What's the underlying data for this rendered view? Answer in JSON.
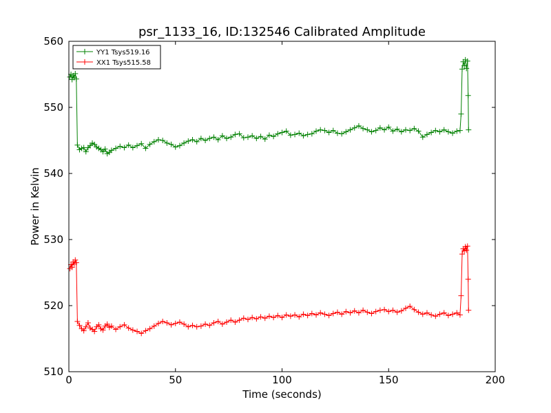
{
  "chart_data": {
    "type": "line",
    "title": "psr_1133_16, ID:132546 Calibrated Amplitude",
    "xlabel": "Time (seconds)",
    "ylabel": "Power in Kelvin",
    "xlim": [
      0,
      200
    ],
    "ylim": [
      510,
      560
    ],
    "xticks": [
      "0",
      "50",
      "100",
      "150",
      "200"
    ],
    "yticks": [
      "510",
      "520",
      "530",
      "540",
      "550",
      "560"
    ],
    "grid": false,
    "legend_position": "top-left",
    "marker": "plus",
    "series": [
      {
        "name": "YY1 Tsys519.16",
        "color": "#008000",
        "points": [
          [
            0.5,
            554.6
          ],
          [
            1.0,
            555.0
          ],
          [
            1.5,
            554.2
          ],
          [
            2.0,
            554.8
          ],
          [
            2.5,
            554.5
          ],
          [
            3.0,
            555.1
          ],
          [
            3.5,
            554.3
          ],
          [
            4.0,
            544.3
          ],
          [
            5.0,
            543.6
          ],
          [
            6.0,
            543.8
          ],
          [
            7.0,
            543.9
          ],
          [
            8.0,
            543.3
          ],
          [
            9.0,
            543.9
          ],
          [
            10.0,
            544.2
          ],
          [
            11.0,
            544.6
          ],
          [
            12.0,
            544.4
          ],
          [
            13.0,
            544.0
          ],
          [
            14.0,
            543.8
          ],
          [
            15.0,
            543.6
          ],
          [
            16.0,
            543.3
          ],
          [
            17.0,
            543.7
          ],
          [
            18.0,
            543.0
          ],
          [
            19.0,
            543.2
          ],
          [
            20.0,
            543.5
          ],
          [
            22.0,
            543.8
          ],
          [
            24.0,
            544.1
          ],
          [
            26.0,
            543.9
          ],
          [
            28.0,
            544.3
          ],
          [
            30.0,
            543.9
          ],
          [
            32.0,
            544.2
          ],
          [
            34.0,
            544.5
          ],
          [
            36.0,
            543.8
          ],
          [
            38.0,
            544.4
          ],
          [
            40.0,
            544.8
          ],
          [
            42.0,
            545.1
          ],
          [
            44.0,
            545.0
          ],
          [
            46.0,
            544.6
          ],
          [
            48.0,
            544.4
          ],
          [
            50.0,
            544.0
          ],
          [
            52.0,
            544.2
          ],
          [
            54.0,
            544.6
          ],
          [
            56.0,
            544.9
          ],
          [
            58.0,
            545.1
          ],
          [
            60.0,
            544.8
          ],
          [
            62.0,
            545.3
          ],
          [
            64.0,
            545.0
          ],
          [
            66.0,
            545.3
          ],
          [
            68.0,
            545.5
          ],
          [
            70.0,
            545.1
          ],
          [
            72.0,
            545.7
          ],
          [
            74.0,
            545.3
          ],
          [
            76.0,
            545.5
          ],
          [
            78.0,
            545.9
          ],
          [
            80.0,
            546.0
          ],
          [
            82.0,
            545.4
          ],
          [
            84.0,
            545.5
          ],
          [
            86.0,
            545.7
          ],
          [
            88.0,
            545.3
          ],
          [
            90.0,
            545.6
          ],
          [
            92.0,
            545.2
          ],
          [
            94.0,
            545.8
          ],
          [
            96.0,
            545.6
          ],
          [
            98.0,
            546.0
          ],
          [
            100.0,
            546.2
          ],
          [
            102.0,
            546.4
          ],
          [
            104.0,
            545.8
          ],
          [
            106.0,
            545.9
          ],
          [
            108.0,
            546.1
          ],
          [
            110.0,
            545.7
          ],
          [
            112.0,
            545.9
          ],
          [
            114.0,
            546.0
          ],
          [
            116.0,
            546.4
          ],
          [
            118.0,
            546.6
          ],
          [
            120.0,
            546.5
          ],
          [
            122.0,
            546.2
          ],
          [
            124.0,
            546.5
          ],
          [
            126.0,
            546.1
          ],
          [
            128.0,
            546.0
          ],
          [
            130.0,
            546.3
          ],
          [
            132.0,
            546.6
          ],
          [
            134.0,
            546.9
          ],
          [
            136.0,
            547.2
          ],
          [
            138.0,
            546.8
          ],
          [
            140.0,
            546.6
          ],
          [
            142.0,
            546.3
          ],
          [
            144.0,
            546.5
          ],
          [
            146.0,
            546.9
          ],
          [
            148.0,
            546.6
          ],
          [
            150.0,
            547.0
          ],
          [
            152.0,
            546.4
          ],
          [
            154.0,
            546.7
          ],
          [
            156.0,
            546.3
          ],
          [
            158.0,
            546.6
          ],
          [
            160.0,
            546.5
          ],
          [
            162.0,
            546.8
          ],
          [
            164.0,
            546.4
          ],
          [
            166.0,
            545.5
          ],
          [
            168.0,
            545.9
          ],
          [
            170.0,
            546.2
          ],
          [
            172.0,
            546.5
          ],
          [
            174.0,
            546.3
          ],
          [
            176.0,
            546.6
          ],
          [
            178.0,
            546.3
          ],
          [
            180.0,
            546.1
          ],
          [
            182.0,
            546.4
          ],
          [
            183.5,
            546.5
          ],
          [
            184.0,
            549.0
          ],
          [
            184.5,
            555.8
          ],
          [
            185.0,
            556.9
          ],
          [
            185.5,
            556.3
          ],
          [
            186.0,
            557.2
          ],
          [
            186.5,
            555.9
          ],
          [
            187.0,
            557.0
          ],
          [
            187.3,
            551.8
          ],
          [
            187.5,
            546.6
          ]
        ]
      },
      {
        "name": "XX1 Tsys515.58",
        "color": "#ff0000",
        "points": [
          [
            0.5,
            525.6
          ],
          [
            1.0,
            526.2
          ],
          [
            1.5,
            525.8
          ],
          [
            2.0,
            526.6
          ],
          [
            2.5,
            526.3
          ],
          [
            3.0,
            526.9
          ],
          [
            3.5,
            526.5
          ],
          [
            4.0,
            517.6
          ],
          [
            5.0,
            517.0
          ],
          [
            6.0,
            516.5
          ],
          [
            7.0,
            516.2
          ],
          [
            8.0,
            516.8
          ],
          [
            9.0,
            517.4
          ],
          [
            10.0,
            516.6
          ],
          [
            11.0,
            516.4
          ],
          [
            12.0,
            516.1
          ],
          [
            13.0,
            516.8
          ],
          [
            14.0,
            517.1
          ],
          [
            15.0,
            516.5
          ],
          [
            16.0,
            516.3
          ],
          [
            17.0,
            516.9
          ],
          [
            18.0,
            517.2
          ],
          [
            19.0,
            516.7
          ],
          [
            20.0,
            516.9
          ],
          [
            22.0,
            516.4
          ],
          [
            24.0,
            516.8
          ],
          [
            26.0,
            517.1
          ],
          [
            28.0,
            516.6
          ],
          [
            30.0,
            516.3
          ],
          [
            32.0,
            516.1
          ],
          [
            34.0,
            515.8
          ],
          [
            36.0,
            516.2
          ],
          [
            38.0,
            516.5
          ],
          [
            40.0,
            516.9
          ],
          [
            42.0,
            517.3
          ],
          [
            44.0,
            517.6
          ],
          [
            46.0,
            517.4
          ],
          [
            48.0,
            517.1
          ],
          [
            50.0,
            517.3
          ],
          [
            52.0,
            517.5
          ],
          [
            54.0,
            517.2
          ],
          [
            56.0,
            516.8
          ],
          [
            58.0,
            517.0
          ],
          [
            60.0,
            516.8
          ],
          [
            62.0,
            516.9
          ],
          [
            64.0,
            517.2
          ],
          [
            66.0,
            517.0
          ],
          [
            68.0,
            517.4
          ],
          [
            70.0,
            517.6
          ],
          [
            72.0,
            517.2
          ],
          [
            74.0,
            517.5
          ],
          [
            76.0,
            517.8
          ],
          [
            78.0,
            517.5
          ],
          [
            80.0,
            517.8
          ],
          [
            82.0,
            518.1
          ],
          [
            84.0,
            517.9
          ],
          [
            86.0,
            518.2
          ],
          [
            88.0,
            518.0
          ],
          [
            90.0,
            518.3
          ],
          [
            92.0,
            518.1
          ],
          [
            94.0,
            518.4
          ],
          [
            96.0,
            518.2
          ],
          [
            98.0,
            518.5
          ],
          [
            100.0,
            518.2
          ],
          [
            102.0,
            518.6
          ],
          [
            104.0,
            518.4
          ],
          [
            106.0,
            518.6
          ],
          [
            108.0,
            518.3
          ],
          [
            110.0,
            518.7
          ],
          [
            112.0,
            518.5
          ],
          [
            114.0,
            518.8
          ],
          [
            116.0,
            518.6
          ],
          [
            118.0,
            518.9
          ],
          [
            120.0,
            518.7
          ],
          [
            122.0,
            518.5
          ],
          [
            124.0,
            518.8
          ],
          [
            126.0,
            519.0
          ],
          [
            128.0,
            518.7
          ],
          [
            130.0,
            519.1
          ],
          [
            132.0,
            518.9
          ],
          [
            134.0,
            519.2
          ],
          [
            136.0,
            518.9
          ],
          [
            138.0,
            519.3
          ],
          [
            140.0,
            519.0
          ],
          [
            142.0,
            518.8
          ],
          [
            144.0,
            519.1
          ],
          [
            146.0,
            519.3
          ],
          [
            148.0,
            519.4
          ],
          [
            150.0,
            519.1
          ],
          [
            152.0,
            519.3
          ],
          [
            154.0,
            519.0
          ],
          [
            156.0,
            519.2
          ],
          [
            158.0,
            519.6
          ],
          [
            160.0,
            519.9
          ],
          [
            162.0,
            519.4
          ],
          [
            164.0,
            519.0
          ],
          [
            166.0,
            518.7
          ],
          [
            168.0,
            518.9
          ],
          [
            170.0,
            518.6
          ],
          [
            172.0,
            518.4
          ],
          [
            174.0,
            518.7
          ],
          [
            176.0,
            518.9
          ],
          [
            178.0,
            518.5
          ],
          [
            180.0,
            518.7
          ],
          [
            182.0,
            518.9
          ],
          [
            183.5,
            518.6
          ],
          [
            184.0,
            521.5
          ],
          [
            184.5,
            527.8
          ],
          [
            185.0,
            528.6
          ],
          [
            185.5,
            528.3
          ],
          [
            186.0,
            528.9
          ],
          [
            186.5,
            528.4
          ],
          [
            187.0,
            529.0
          ],
          [
            187.3,
            524.0
          ],
          [
            187.5,
            519.3
          ]
        ]
      }
    ]
  }
}
